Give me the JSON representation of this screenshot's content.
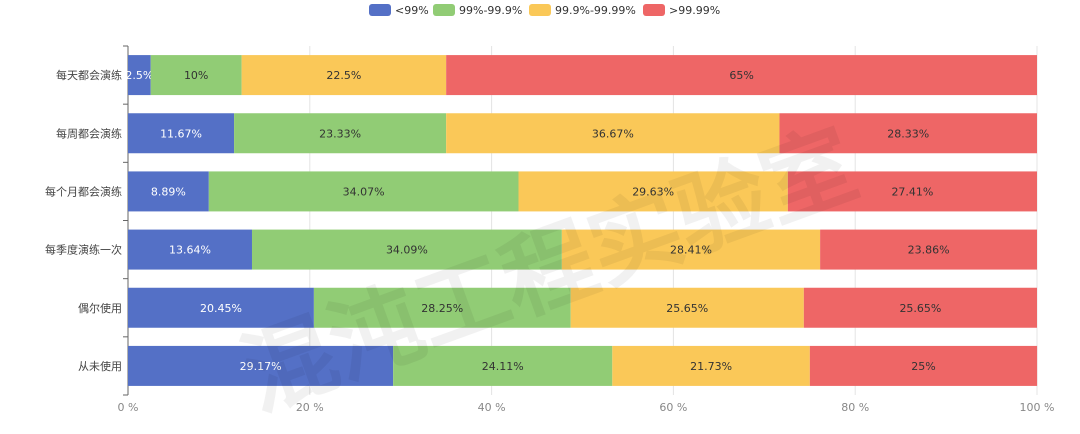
{
  "chart_data": {
    "type": "bar",
    "orientation": "horizontal",
    "stacked": true,
    "categories": [
      "每天都会演练",
      "每周都会演练",
      "每个月都会演练",
      "每季度演练一次",
      "偶尔使用",
      "从未使用"
    ],
    "series": [
      {
        "name": "<99%",
        "color": "#5470c6",
        "values": [
          2.5,
          11.67,
          8.89,
          13.64,
          20.45,
          29.17
        ],
        "labels": [
          "2.5%",
          "11.67%",
          "8.89%",
          "13.64%",
          "20.45%",
          "29.17%"
        ]
      },
      {
        "name": "99%-99.9%",
        "color": "#91cc75",
        "values": [
          10,
          23.33,
          34.07,
          34.09,
          28.25,
          24.11
        ],
        "labels": [
          "10%",
          "23.33%",
          "34.07%",
          "34.09%",
          "28.25%",
          "24.11%"
        ]
      },
      {
        "name": "99.9%-99.99%",
        "color": "#fac858",
        "values": [
          22.5,
          36.67,
          29.63,
          28.41,
          25.65,
          21.73
        ],
        "labels": [
          "22.5%",
          "36.67%",
          "29.63%",
          "28.41%",
          "25.65%",
          "21.73%"
        ]
      },
      {
        "name": ">99.99%",
        "color": "#ee6666",
        "values": [
          65,
          28.33,
          27.41,
          23.86,
          25.65,
          25
        ],
        "labels": [
          "65%",
          "28.33%",
          "27.41%",
          "23.86%",
          "25.65%",
          "25%"
        ]
      }
    ],
    "x_ticks": [
      "0 %",
      "20 %",
      "40 %",
      "60 %",
      "80 %",
      "100 %"
    ],
    "xlim": [
      0,
      100
    ],
    "legend_position": "top-center",
    "grid": true,
    "watermark": "混沌工程实验室"
  }
}
